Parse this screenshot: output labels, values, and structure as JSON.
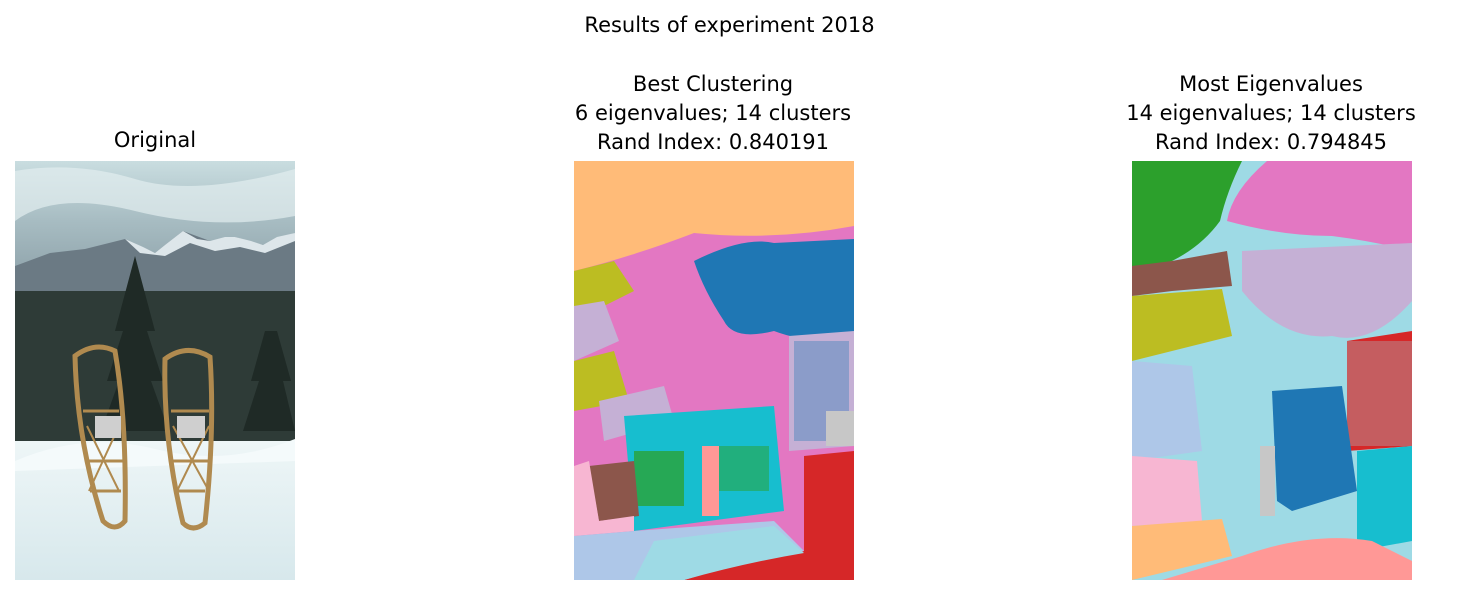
{
  "figure": {
    "suptitle": "Results of experiment 2018"
  },
  "panels": [
    {
      "id": "original",
      "title_lines": [
        "Original"
      ],
      "image": "photograph of two wooden snowshoes standing upright in snow in front of evergreen trees and snowy mountains under a cloudy sky"
    },
    {
      "id": "best-clustering",
      "title_lines": [
        "Best Clustering",
        "6 eigenvalues; 14 clusters",
        "Rand Index: 0.840191"
      ],
      "image": "segmentation label map of the snowshoe photo rendered with a categorical color palette"
    },
    {
      "id": "most-eigenvalues",
      "title_lines": [
        "Most Eigenvalues",
        "14 eigenvalues; 14 clusters",
        "Rand Index: 0.794845"
      ],
      "image": "segmentation label map of the snowshoe photo rendered with a categorical color palette"
    }
  ],
  "colors": {
    "tab_blue": "#1f77b4",
    "tab_lightblue": "#aec7e8",
    "tab_lightorange": "#ffbb78",
    "tab_green": "#2ca02c",
    "tab_red": "#d62728",
    "tab_salmon": "#ff9896",
    "tab_brown": "#8c564b",
    "tab_lilac": "#c5b0d5",
    "tab_pink": "#e377c2",
    "tab_lightpink": "#f7b6d2",
    "tab_gray": "#c7c7c7",
    "tab_olive": "#bcbd22",
    "tab_cyan": "#17becf",
    "tab_lightcyan": "#9edae5"
  }
}
